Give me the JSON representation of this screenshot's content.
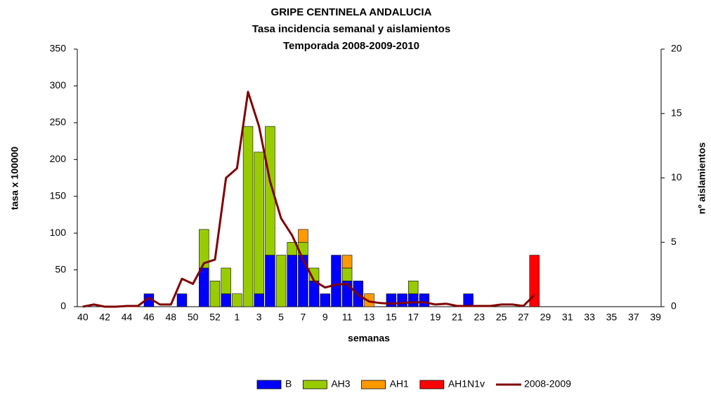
{
  "chart_data": {
    "type": "bar",
    "title": [
      "GRIPE CENTINELA ANDALUCIA",
      "Tasa incidencia semanal y aislamientos",
      "Temporada 2008-2009-2010"
    ],
    "xlabel": "semanas",
    "ylabel": "tasa x 100000",
    "y2label": "nº aislamientos",
    "categories": [
      "40",
      null,
      "42",
      null,
      "44",
      null,
      "46",
      null,
      "48",
      null,
      "50",
      null,
      "52",
      null,
      "1",
      null,
      "3",
      null,
      "5",
      null,
      "7",
      null,
      "9",
      null,
      "11",
      null,
      "13",
      null,
      "15",
      null,
      "17",
      null,
      "19",
      null,
      "21",
      null,
      "23",
      null,
      "25",
      null,
      "27",
      null,
      "29",
      null,
      "31",
      null,
      "33",
      null,
      "35",
      null,
      "37",
      null,
      "39"
    ],
    "ylim": [
      0,
      350
    ],
    "yticks": [
      0,
      50,
      100,
      150,
      200,
      250,
      300,
      350
    ],
    "y2lim": [
      0,
      20
    ],
    "y2ticks": [
      0,
      5,
      10,
      15,
      20
    ],
    "legend": "bottom",
    "series": [
      {
        "name": "B",
        "color": "#0000ff",
        "axis": "y2",
        "type": "bar",
        "values": [
          null,
          null,
          null,
          null,
          null,
          null,
          1,
          null,
          null,
          1,
          null,
          3,
          null,
          1,
          null,
          null,
          1,
          4,
          null,
          4,
          4,
          2,
          1,
          4,
          2,
          2,
          null,
          null,
          1,
          1,
          1,
          1,
          null,
          null,
          null,
          1,
          null,
          null,
          null,
          null,
          null,
          null,
          null,
          null,
          null,
          null,
          null,
          null,
          null,
          null,
          null,
          null,
          null
        ]
      },
      {
        "name": "AH3",
        "color": "#99cc00",
        "axis": "y2",
        "type": "bar",
        "values": [
          null,
          null,
          null,
          null,
          null,
          null,
          null,
          null,
          null,
          null,
          null,
          3,
          2,
          2,
          1,
          14,
          11,
          10,
          4,
          1,
          1,
          1,
          null,
          null,
          1,
          null,
          null,
          null,
          null,
          null,
          1,
          null,
          null,
          null,
          null,
          null,
          null,
          null,
          null,
          null,
          null,
          null,
          null,
          null,
          null,
          null,
          null,
          null,
          null,
          null,
          null,
          null,
          null
        ]
      },
      {
        "name": "AH1",
        "color": "#ff9900",
        "axis": "y2",
        "type": "bar",
        "values": [
          null,
          null,
          null,
          null,
          null,
          null,
          null,
          null,
          null,
          null,
          null,
          null,
          null,
          null,
          null,
          null,
          null,
          null,
          null,
          null,
          1,
          null,
          null,
          null,
          1,
          null,
          1,
          null,
          null,
          null,
          null,
          null,
          null,
          null,
          null,
          null,
          null,
          null,
          null,
          null,
          null,
          null,
          null,
          null,
          null,
          null,
          null,
          null,
          null,
          null,
          null,
          null,
          null
        ]
      },
      {
        "name": "AH1N1v",
        "color": "#ff0000",
        "axis": "y2",
        "type": "bar",
        "values": [
          null,
          null,
          null,
          null,
          null,
          null,
          null,
          null,
          null,
          null,
          null,
          null,
          null,
          null,
          null,
          null,
          null,
          null,
          null,
          null,
          null,
          null,
          null,
          null,
          null,
          null,
          null,
          null,
          null,
          null,
          null,
          null,
          null,
          null,
          null,
          null,
          null,
          null,
          null,
          null,
          null,
          4,
          null,
          null,
          null,
          null,
          null,
          null,
          null,
          null,
          null,
          null,
          null
        ]
      },
      {
        "name": "2008-2009",
        "color": "#800000",
        "type": "line",
        "values": [
          0,
          3,
          0,
          0,
          1,
          1,
          12,
          3,
          3,
          38,
          31,
          59,
          64,
          175,
          188,
          292,
          245,
          170,
          120,
          97,
          64,
          35,
          26,
          30,
          31,
          16,
          7,
          5,
          4,
          5,
          6,
          6,
          3,
          4,
          1,
          1,
          1,
          1,
          3,
          3,
          1,
          16,
          null,
          null,
          null,
          null,
          null,
          null,
          null,
          null,
          null,
          null,
          null
        ]
      }
    ]
  }
}
